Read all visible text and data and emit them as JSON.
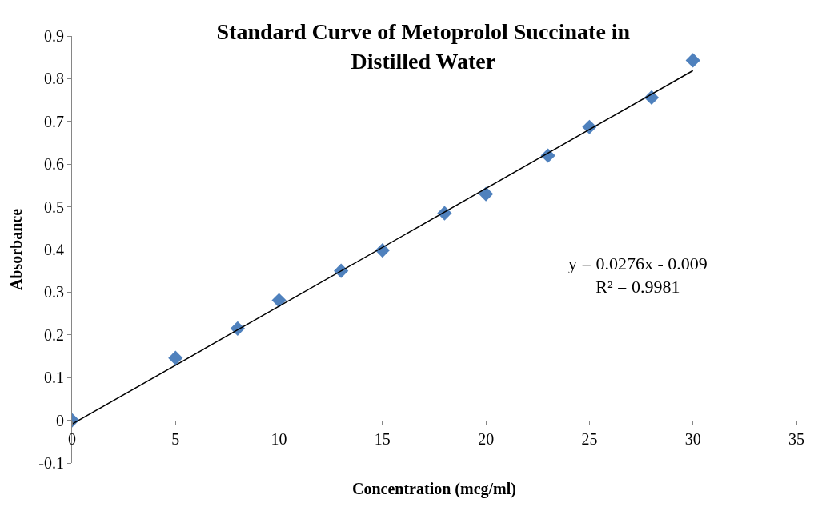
{
  "chart_data": {
    "type": "scatter",
    "title": "Standard Curve of Metoprolol Succinate in\nDistilled Water",
    "xlabel": "Concentration (mcg/ml)",
    "ylabel": "Absorbance",
    "annotations": [
      "y = 0.0276x - 0.009\nR² = 0.9981"
    ],
    "series": [
      {
        "color": "#4f81bd",
        "marker": "diamond",
        "x": [
          0,
          5,
          8,
          10,
          13,
          15,
          18,
          20,
          23,
          25,
          28,
          30
        ],
        "values": [
          0,
          0.146,
          0.215,
          0.281,
          0.35,
          0.398,
          0.485,
          0.53,
          0.62,
          0.687,
          0.756,
          0.843
        ]
      },
      {
        "type": "line",
        "color": "#000000",
        "line_style": "solid",
        "x": [
          0,
          30
        ],
        "values": [
          -0.009,
          0.819
        ]
      }
    ],
    "xlim": [
      0,
      35
    ],
    "xticks": [
      0,
      5,
      10,
      15,
      20,
      25,
      30,
      35
    ],
    "ylim": [
      -0.1,
      0.9
    ],
    "yticks": [
      -0.1,
      0,
      0.1,
      0.2,
      0.3,
      0.4,
      0.5,
      0.6,
      0.7,
      0.8,
      0.9
    ]
  }
}
